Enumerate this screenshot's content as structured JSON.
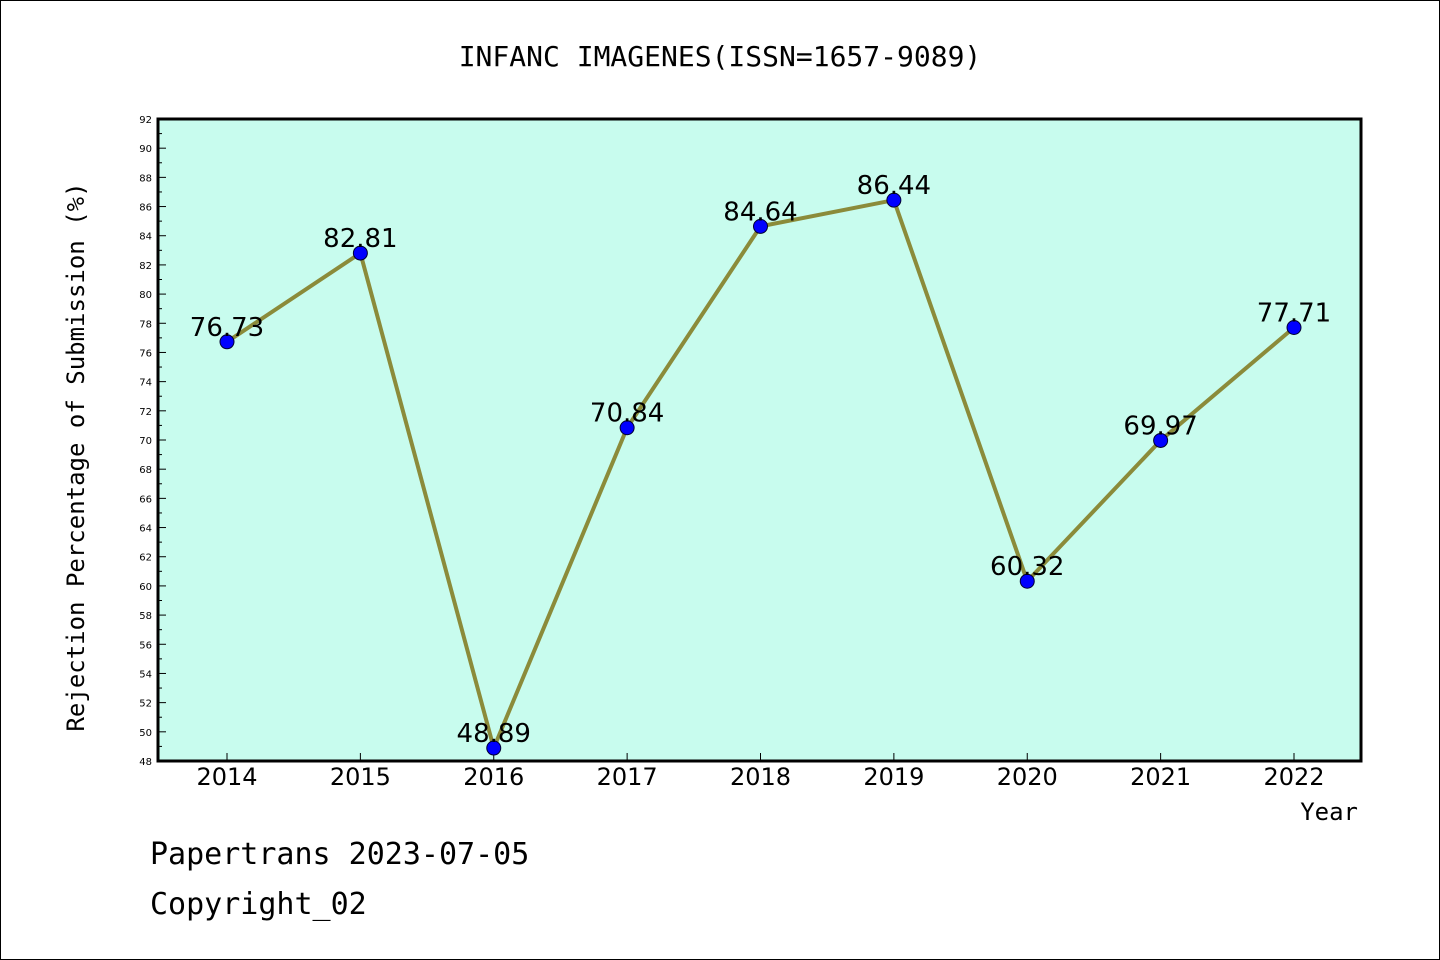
{
  "chart_data": {
    "type": "line",
    "title": "INFANC IMAGENES(ISSN=1657-9089)",
    "xlabel": "Year",
    "ylabel": "Rejection Percentage of Submission (%)",
    "categories": [
      "2014",
      "2015",
      "2016",
      "2017",
      "2018",
      "2019",
      "2020",
      "2021",
      "2022"
    ],
    "series": [
      {
        "values": [
          76.73,
          82.81,
          48.89,
          70.84,
          84.64,
          86.44,
          60.32,
          69.97,
          77.71
        ],
        "labels": [
          "76.73",
          "82.81",
          "48.89",
          "70.84",
          "84.64",
          "86.44",
          "60.32",
          "69.97",
          "77.71"
        ],
        "line_color": "#8B8B3A",
        "marker_color": "#0000FF"
      }
    ],
    "ylim": [
      48,
      92
    ],
    "yticks": [
      "48",
      "50",
      "52",
      "54",
      "56",
      "58",
      "60",
      "62",
      "64",
      "66",
      "68",
      "70",
      "72",
      "74",
      "76",
      "78",
      "80",
      "82",
      "84",
      "86",
      "88",
      "90",
      "92"
    ],
    "plot_background": "#C8FCEE",
    "grid": false,
    "legend": "none"
  },
  "footer": {
    "line1": "Papertrans 2023-07-05",
    "line2": "Copyright_02"
  }
}
